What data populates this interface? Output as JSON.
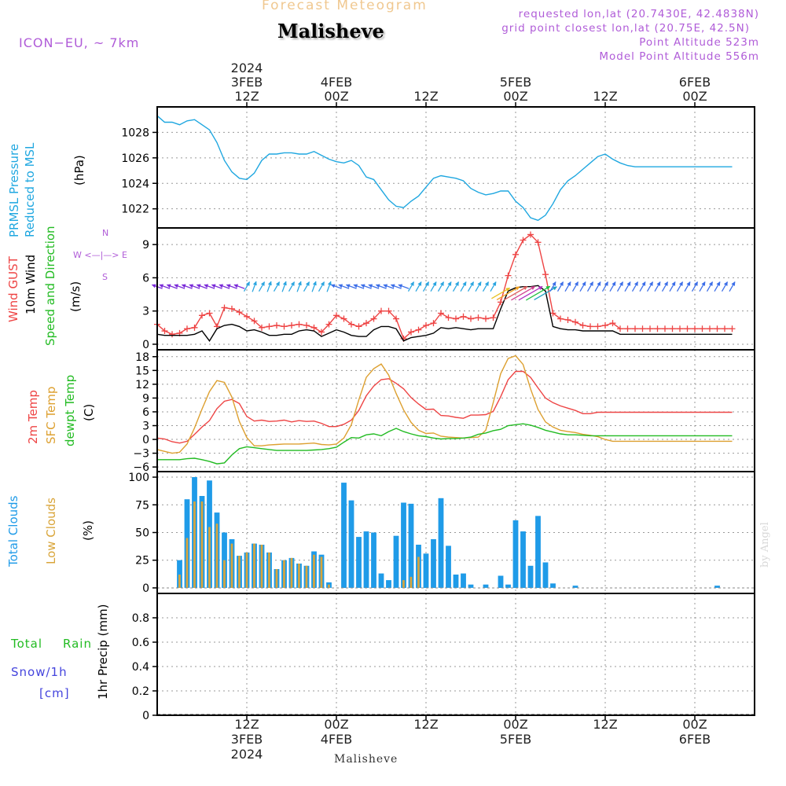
{
  "header": {
    "product": "Forecast Meteogram",
    "location": "Malisheve",
    "model": "ICON−EU, ~ 7km",
    "requested": "requested lon,lat (20.7430E, 42.4838N)",
    "grid": "grid point closest lon,lat (20.75E, 42.5N)",
    "point_alt": "Point Altitude 523m",
    "model_alt": "Model Point Altitude 556m",
    "credit": "by Angel",
    "footer_location": "Malisheve"
  },
  "colors": {
    "pressure": "#1fa7e0",
    "gust": "#ee4444",
    "wind": "#000000",
    "dir": "#22bb22",
    "t2m": "#ee4444",
    "sfc": "#dda030",
    "dew": "#22bb22",
    "total_clouds": "#1f9be8",
    "low_clouds": "#d9a53a",
    "rain": "#22bb22",
    "snow": "#4444dd",
    "label_purple": "#b05cd8",
    "grid": "#999999"
  },
  "chart_data": [
    {
      "type": "line",
      "id": "pressure",
      "title": "PRMSL Pressure Reduced to MSL",
      "ylabel": "(hPa)",
      "ylim": [
        1020.5,
        1030.0
      ],
      "yticks": [
        1022,
        1024,
        1026,
        1028
      ],
      "x_hours": [
        0,
        1,
        2,
        3,
        4,
        5,
        6,
        7,
        8,
        9,
        10,
        11,
        12,
        13,
        14,
        15,
        16,
        17,
        18,
        19,
        20,
        21,
        22,
        23,
        24,
        25,
        26,
        27,
        28,
        29,
        30,
        31,
        32,
        33,
        34,
        35,
        36,
        37,
        38,
        39,
        40,
        41,
        42,
        43,
        44,
        45,
        46,
        47,
        48,
        49,
        50,
        51,
        52,
        53,
        54,
        55,
        56,
        57,
        58,
        59,
        60,
        61,
        62,
        63,
        64,
        65,
        66,
        67,
        68,
        69,
        70,
        71,
        72,
        73,
        74,
        75,
        76,
        77
      ],
      "series": [
        {
          "name": "PRMSL",
          "values": [
            1029.3,
            1028.8,
            1028.8,
            1028.6,
            1028.9,
            1029.0,
            1028.6,
            1028.2,
            1027.2,
            1025.8,
            1024.9,
            1024.4,
            1024.3,
            1024.8,
            1025.8,
            1026.3,
            1026.3,
            1026.4,
            1026.4,
            1026.3,
            1026.3,
            1026.5,
            1026.2,
            1025.9,
            1025.7,
            1025.6,
            1025.8,
            1025.4,
            1024.5,
            1024.3,
            1023.5,
            1022.7,
            1022.2,
            1022.1,
            1022.6,
            1023.0,
            1023.7,
            1024.4,
            1024.6,
            1024.5,
            1024.4,
            1024.2,
            1023.6,
            1023.3,
            1023.1,
            1023.2,
            1023.4,
            1023.4,
            1022.6,
            1022.1,
            1021.3,
            1021.1,
            1021.5,
            1022.4,
            1023.5,
            1024.2,
            1024.6,
            1025.1,
            1025.6,
            1026.1,
            1026.3,
            1025.9,
            1025.6,
            1025.4,
            1025.3,
            1025.3,
            1025.3,
            1025.3,
            1025.3,
            1025.3,
            1025.3,
            1025.3,
            1025.3,
            1025.3,
            1025.3,
            1025.3,
            1025.3,
            1025.3
          ]
        }
      ]
    },
    {
      "type": "line",
      "id": "wind",
      "title": "Wind GUST 10m Wind Speed and Direction",
      "ylabel": "(m/s)",
      "compass": "W <—|—> E",
      "compass_n": "N",
      "compass_s": "S",
      "ylim": [
        -0.5,
        10.5
      ],
      "yticks": [
        0,
        3,
        6,
        9
      ],
      "x_hours": [
        0,
        1,
        2,
        3,
        4,
        5,
        6,
        7,
        8,
        9,
        10,
        11,
        12,
        13,
        14,
        15,
        16,
        17,
        18,
        19,
        20,
        21,
        22,
        23,
        24,
        25,
        26,
        27,
        28,
        29,
        30,
        31,
        32,
        33,
        34,
        35,
        36,
        37,
        38,
        39,
        40,
        41,
        42,
        43,
        44,
        45,
        46,
        47,
        48,
        49,
        50,
        51,
        52,
        53,
        54,
        55,
        56,
        57,
        58,
        59,
        60,
        61,
        62,
        63,
        64,
        65,
        66,
        67,
        68,
        69,
        70,
        71,
        72,
        73,
        74,
        75,
        76,
        77
      ],
      "series": [
        {
          "name": "Wind GUST",
          "values": [
            1.8,
            1.2,
            0.9,
            1.0,
            1.4,
            1.5,
            2.6,
            2.8,
            1.6,
            3.3,
            3.2,
            2.9,
            2.5,
            2.1,
            1.5,
            1.6,
            1.7,
            1.6,
            1.7,
            1.8,
            1.7,
            1.5,
            1.1,
            1.8,
            2.6,
            2.3,
            1.8,
            1.6,
            1.9,
            2.3,
            3.0,
            3.0,
            2.3,
            0.5,
            1.1,
            1.3,
            1.7,
            1.9,
            2.8,
            2.4,
            2.3,
            2.5,
            2.3,
            2.4,
            2.3,
            2.4,
            3.8,
            6.2,
            8.1,
            9.4,
            9.9,
            9.2,
            6.3,
            2.8,
            2.3,
            2.2,
            2.0,
            1.7,
            1.6,
            1.6,
            1.7,
            1.9,
            1.4,
            1.4,
            1.4,
            1.4,
            1.4,
            1.4,
            1.4,
            1.4,
            1.4,
            1.4,
            1.4,
            1.4,
            1.4,
            1.4,
            1.4,
            1.4
          ]
        },
        {
          "name": "10m Wind",
          "values": [
            0.9,
            0.8,
            0.8,
            0.8,
            0.8,
            0.9,
            1.2,
            0.3,
            1.4,
            1.7,
            1.8,
            1.6,
            1.2,
            1.3,
            1.1,
            0.8,
            0.8,
            0.9,
            0.9,
            1.2,
            1.3,
            1.2,
            0.7,
            1.0,
            1.3,
            1.1,
            0.8,
            0.7,
            0.7,
            1.3,
            1.6,
            1.6,
            1.4,
            0.3,
            0.6,
            0.7,
            0.8,
            1.0,
            1.5,
            1.4,
            1.5,
            1.4,
            1.3,
            1.4,
            1.4,
            1.4,
            3.2,
            4.8,
            5.1,
            5.2,
            5.2,
            5.3,
            4.8,
            1.6,
            1.4,
            1.3,
            1.3,
            1.2,
            1.2,
            1.2,
            1.2,
            1.2,
            0.9,
            0.9,
            0.9,
            0.9,
            0.9,
            0.9,
            0.9,
            0.9,
            0.9,
            0.9,
            0.9,
            0.9,
            0.9,
            0.9,
            0.9,
            0.9
          ]
        }
      ]
    },
    {
      "type": "line",
      "id": "temperature",
      "title": "2m Temp SFC Temp dewpt Temp",
      "ylabel": "(C)",
      "ylim": [
        -7.0,
        19.5
      ],
      "yticks": [
        -6,
        -3,
        0,
        3,
        6,
        9,
        12,
        15,
        18
      ],
      "x_hours": [
        0,
        1,
        2,
        3,
        4,
        5,
        6,
        7,
        8,
        9,
        10,
        11,
        12,
        13,
        14,
        15,
        16,
        17,
        18,
        19,
        20,
        21,
        22,
        23,
        24,
        25,
        26,
        27,
        28,
        29,
        30,
        31,
        32,
        33,
        34,
        35,
        36,
        37,
        38,
        39,
        40,
        41,
        42,
        43,
        44,
        45,
        46,
        47,
        48,
        49,
        50,
        51,
        52,
        53,
        54,
        55,
        56,
        57,
        58,
        59,
        60,
        61,
        62,
        63,
        64,
        65,
        66,
        67,
        68,
        69,
        70,
        71,
        72,
        73,
        74,
        75,
        76,
        77
      ],
      "series": [
        {
          "name": "2m Temp",
          "values": [
            0.3,
            0.1,
            -0.5,
            -0.8,
            -0.4,
            1.1,
            2.7,
            4.1,
            6.7,
            8.3,
            8.7,
            7.8,
            5.0,
            4.0,
            4.2,
            3.9,
            4.0,
            4.2,
            3.8,
            4.1,
            3.9,
            4.0,
            3.5,
            2.8,
            2.8,
            3.3,
            4.2,
            6.3,
            9.5,
            11.6,
            13.0,
            13.2,
            12.2,
            11.0,
            9.1,
            7.7,
            6.5,
            6.6,
            5.2,
            5.1,
            4.8,
            4.6,
            5.3,
            5.3,
            5.4,
            6.1,
            9.3,
            13.0,
            14.8,
            14.8,
            13.5,
            11.2,
            9.0,
            8.0,
            7.3,
            6.8,
            6.3,
            5.6,
            5.6,
            5.9,
            5.9,
            5.9,
            5.9,
            5.9,
            5.9,
            5.9,
            5.9,
            5.9,
            5.9,
            5.9,
            5.9,
            5.9,
            5.9,
            5.9,
            5.9,
            5.9,
            5.9,
            5.9
          ]
        },
        {
          "name": "SFC Temp",
          "values": [
            -2.2,
            -2.6,
            -3.0,
            -2.8,
            -1.0,
            2.5,
            6.6,
            10.4,
            12.8,
            12.4,
            9.2,
            3.9,
            0.4,
            -1.4,
            -1.4,
            -1.2,
            -1.1,
            -1.0,
            -1.0,
            -1.0,
            -0.9,
            -0.8,
            -1.1,
            -1.2,
            -1.0,
            0.3,
            3.2,
            8.6,
            13.5,
            15.4,
            16.4,
            14.0,
            10.0,
            6.4,
            3.7,
            2.0,
            1.3,
            1.4,
            0.7,
            0.5,
            0.4,
            0.3,
            0.4,
            0.5,
            2.0,
            8.0,
            14.3,
            17.6,
            18.2,
            16.3,
            11.0,
            6.5,
            3.8,
            2.7,
            2.0,
            1.7,
            1.5,
            1.1,
            0.9,
            0.6,
            0.0,
            -0.4,
            -0.4,
            -0.4,
            -0.4,
            -0.4,
            -0.4,
            -0.4,
            -0.4,
            -0.4,
            -0.4,
            -0.4,
            -0.4,
            -0.4,
            -0.4,
            -0.4,
            -0.4,
            -0.4
          ]
        },
        {
          "name": "dewpt Temp",
          "values": [
            -4.4,
            -4.4,
            -4.4,
            -4.4,
            -4.2,
            -4.1,
            -4.4,
            -4.8,
            -5.3,
            -5.1,
            -3.4,
            -2.0,
            -1.6,
            -1.8,
            -2.0,
            -2.2,
            -2.4,
            -2.4,
            -2.4,
            -2.4,
            -2.4,
            -2.3,
            -2.2,
            -2.0,
            -1.7,
            -0.6,
            0.4,
            0.3,
            1.0,
            1.2,
            0.8,
            1.7,
            2.4,
            1.7,
            1.2,
            0.8,
            0.6,
            0.3,
            0.1,
            0.2,
            0.2,
            0.3,
            0.5,
            1.1,
            1.4,
            1.9,
            2.2,
            3.0,
            3.2,
            3.4,
            3.1,
            2.6,
            2.0,
            1.6,
            1.2,
            1.0,
            1.0,
            0.9,
            0.8,
            0.8,
            0.8,
            0.8,
            0.8,
            0.8,
            0.8,
            0.8,
            0.8,
            0.8,
            0.8,
            0.8,
            0.8,
            0.8,
            0.8,
            0.8,
            0.8,
            0.8,
            0.8,
            0.8
          ]
        }
      ]
    },
    {
      "type": "bar",
      "id": "clouds",
      "title": "Total Clouds Low Clouds",
      "ylabel": "(%)",
      "ylim": [
        -5,
        105
      ],
      "yticks": [
        0,
        25,
        50,
        75,
        100
      ],
      "x_hours": [
        0,
        1,
        2,
        3,
        4,
        5,
        6,
        7,
        8,
        9,
        10,
        11,
        12,
        13,
        14,
        15,
        16,
        17,
        18,
        19,
        20,
        21,
        22,
        23,
        24,
        25,
        26,
        27,
        28,
        29,
        30,
        31,
        32,
        33,
        34,
        35,
        36,
        37,
        38,
        39,
        40,
        41,
        42,
        43,
        44,
        45,
        46,
        47,
        48,
        49,
        50,
        51,
        52,
        53,
        54,
        55,
        56,
        57,
        58,
        59,
        60,
        61,
        62,
        63,
        64,
        65,
        66,
        67,
        68,
        69,
        70,
        71,
        72,
        73,
        74,
        75,
        76,
        77,
        78
      ],
      "series": [
        {
          "name": "Total Clouds",
          "values": [
            0,
            0,
            0,
            25,
            80,
            100,
            83,
            97,
            68,
            50,
            44,
            29,
            32,
            40,
            39,
            32,
            17,
            25,
            27,
            22,
            20,
            33,
            30,
            5,
            0,
            95,
            79,
            46,
            51,
            50,
            13,
            7,
            47,
            77,
            76,
            39,
            31,
            44,
            81,
            38,
            12,
            13,
            3,
            0,
            3,
            0,
            11,
            3,
            61,
            51,
            20,
            65,
            23,
            4,
            0,
            0,
            2,
            0,
            0,
            0,
            0,
            0,
            0,
            0,
            0,
            0,
            0,
            0,
            0,
            0,
            0,
            0,
            0,
            0,
            0,
            2,
            0,
            0,
            0
          ]
        },
        {
          "name": "Low Clouds",
          "values": [
            0,
            0,
            0,
            12,
            45,
            78,
            78,
            55,
            58,
            25,
            40,
            29,
            32,
            40,
            39,
            32,
            17,
            25,
            27,
            22,
            20,
            30,
            28,
            3,
            0,
            0,
            0,
            0,
            0,
            0,
            0,
            0,
            0,
            7,
            10,
            28,
            0,
            0,
            0,
            0,
            0,
            0,
            0,
            0,
            0,
            0,
            0,
            0,
            0,
            0,
            0,
            0,
            0,
            0,
            0,
            0,
            0,
            0,
            0,
            0,
            0,
            0,
            0,
            0,
            0,
            0,
            0,
            0,
            0,
            0,
            0,
            0,
            0,
            0,
            0,
            0,
            0,
            0,
            0
          ]
        }
      ]
    },
    {
      "type": "bar",
      "id": "precip",
      "title": "Total Rain Snow/1h [cm]",
      "ylabel": "1hr Precip (mm)",
      "label_total": "Total",
      "label_rain": "Rain",
      "label_snow": "Snow/1h",
      "label_cm": "[cm]",
      "ylim": [
        0,
        1.0
      ],
      "yticks": [
        0,
        0.2,
        0.4,
        0.6,
        0.8
      ],
      "series": [
        {
          "name": "Total",
          "values": []
        },
        {
          "name": "Rain",
          "values": []
        },
        {
          "name": "Snow/1h",
          "values": []
        }
      ]
    }
  ],
  "time_axis": {
    "top": [
      {
        "hour": 12,
        "lines": [
          "2024",
          "3FEB",
          "12Z"
        ]
      },
      {
        "hour": 24,
        "lines": [
          "4FEB",
          "00Z"
        ]
      },
      {
        "hour": 36,
        "lines": [
          "12Z"
        ]
      },
      {
        "hour": 48,
        "lines": [
          "5FEB",
          "00Z"
        ]
      },
      {
        "hour": 60,
        "lines": [
          "12Z"
        ]
      },
      {
        "hour": 72,
        "lines": [
          "6FEB",
          "00Z"
        ]
      }
    ],
    "bottom": [
      {
        "hour": 12,
        "lines": [
          "12Z",
          "3FEB",
          "2024"
        ]
      },
      {
        "hour": 24,
        "lines": [
          "00Z",
          "4FEB"
        ]
      },
      {
        "hour": 36,
        "lines": [
          "12Z"
        ]
      },
      {
        "hour": 48,
        "lines": [
          "00Z",
          "5FEB"
        ]
      },
      {
        "hour": 60,
        "lines": [
          "12Z"
        ]
      },
      {
        "hour": 72,
        "lines": [
          "00Z",
          "6FEB"
        ]
      }
    ]
  }
}
